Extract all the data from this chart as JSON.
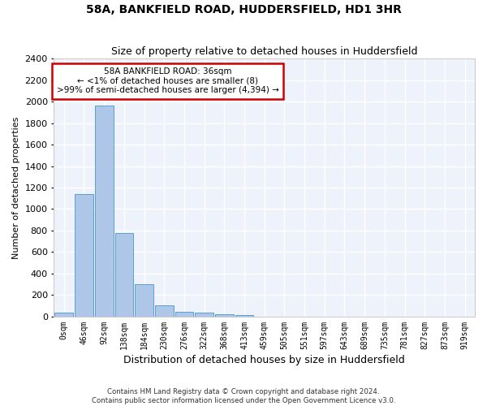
{
  "title": "58A, BANKFIELD ROAD, HUDDERSFIELD, HD1 3HR",
  "subtitle": "Size of property relative to detached houses in Huddersfield",
  "xlabel": "Distribution of detached houses by size in Huddersfield",
  "ylabel": "Number of detached properties",
  "bar_color": "#aec6e8",
  "bar_edge_color": "#5a9fd4",
  "background_color": "#eef2fb",
  "grid_color": "#ffffff",
  "annotation_box_color": "#cc0000",
  "annotation_line1": "58A BANKFIELD ROAD: 36sqm",
  "annotation_line2": "← <1% of detached houses are smaller (8)",
  "annotation_line3": ">99% of semi-detached houses are larger (4,394) →",
  "footer_line1": "Contains HM Land Registry data © Crown copyright and database right 2024.",
  "footer_line2": "Contains public sector information licensed under the Open Government Licence v3.0.",
  "bin_labels": [
    "0sqm",
    "46sqm",
    "92sqm",
    "138sqm",
    "184sqm",
    "230sqm",
    "276sqm",
    "322sqm",
    "368sqm",
    "413sqm",
    "459sqm",
    "505sqm",
    "551sqm",
    "597sqm",
    "643sqm",
    "689sqm",
    "735sqm",
    "781sqm",
    "827sqm",
    "873sqm",
    "919sqm"
  ],
  "bar_heights": [
    35,
    1140,
    1960,
    775,
    300,
    105,
    48,
    38,
    22,
    18,
    0,
    0,
    0,
    0,
    0,
    0,
    0,
    0,
    0,
    0,
    0
  ],
  "ylim": [
    0,
    2400
  ],
  "yticks": [
    0,
    200,
    400,
    600,
    800,
    1000,
    1200,
    1400,
    1600,
    1800,
    2000,
    2200,
    2400
  ]
}
